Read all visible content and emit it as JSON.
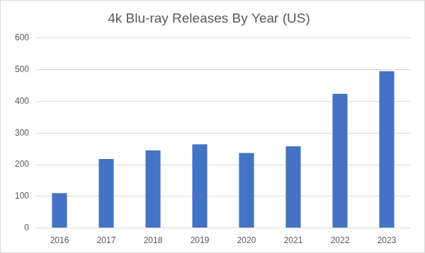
{
  "chart_data": {
    "type": "bar",
    "title": "4k Blu-ray Releases By Year (US)",
    "categories": [
      "2016",
      "2017",
      "2018",
      "2019",
      "2020",
      "2021",
      "2022",
      "2023"
    ],
    "values": [
      110,
      218,
      245,
      264,
      237,
      258,
      424,
      495
    ],
    "color": "#4472c4",
    "ylim": [
      0,
      600
    ],
    "yticks": [
      0,
      100,
      200,
      300,
      400,
      500,
      600
    ],
    "grid": true
  }
}
